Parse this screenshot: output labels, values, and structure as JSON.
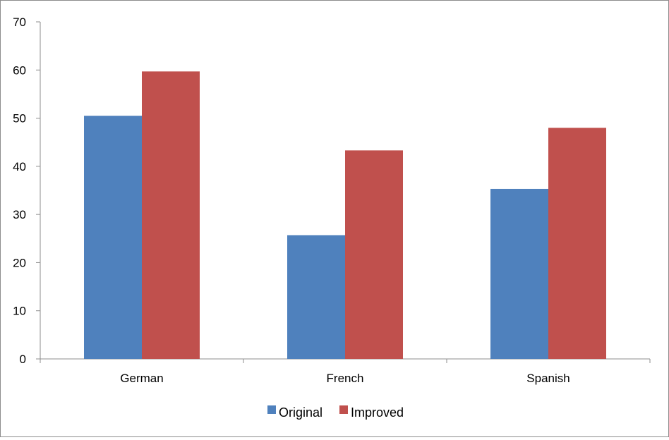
{
  "chart_data": {
    "type": "bar",
    "title": "",
    "xlabel": "",
    "ylabel": "",
    "categories": [
      "German",
      "French",
      "Spanish"
    ],
    "series": [
      {
        "name": "Original",
        "values": [
          50.5,
          25.7,
          35.3
        ],
        "color": "#4F81BD"
      },
      {
        "name": "Improved",
        "values": [
          59.7,
          43.3,
          48.0
        ],
        "color": "#C0504D"
      }
    ],
    "ylim": [
      0,
      70
    ],
    "yticks": [
      0,
      10,
      20,
      30,
      40,
      50,
      60,
      70
    ],
    "grid": false,
    "legend_position": "bottom"
  }
}
